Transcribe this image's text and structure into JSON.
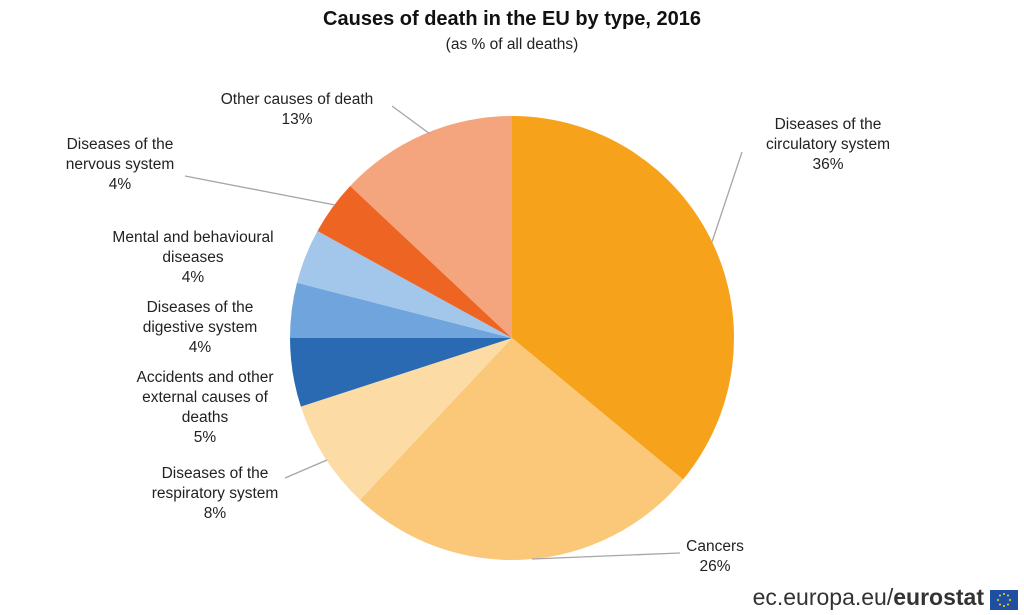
{
  "chart_data": {
    "type": "pie",
    "title": "Causes of death in the EU by type, 2016",
    "subtitle": "(as % of all deaths)",
    "categories": [
      "Diseases of the circulatory system",
      "Cancers",
      "Diseases of the respiratory system",
      "Accidents and other external causes of deaths",
      "Diseases of the digestive system",
      "Mental and behavioural diseases",
      "Diseases of the nervous system",
      "Other causes of death"
    ],
    "values": [
      36,
      26,
      8,
      5,
      4,
      4,
      4,
      13
    ],
    "value_labels": [
      "36%",
      "26%",
      "8%",
      "5%",
      "4%",
      "4%",
      "4%",
      "13%"
    ],
    "colors": [
      "#f7a21b",
      "#fac878",
      "#fddba4",
      "#2a6ab3",
      "#6fa4dc",
      "#a3c7ea",
      "#ee6423",
      "#f4a57d"
    ]
  },
  "footer": {
    "site": "ec.europa.eu/",
    "brand": "eurostat"
  }
}
